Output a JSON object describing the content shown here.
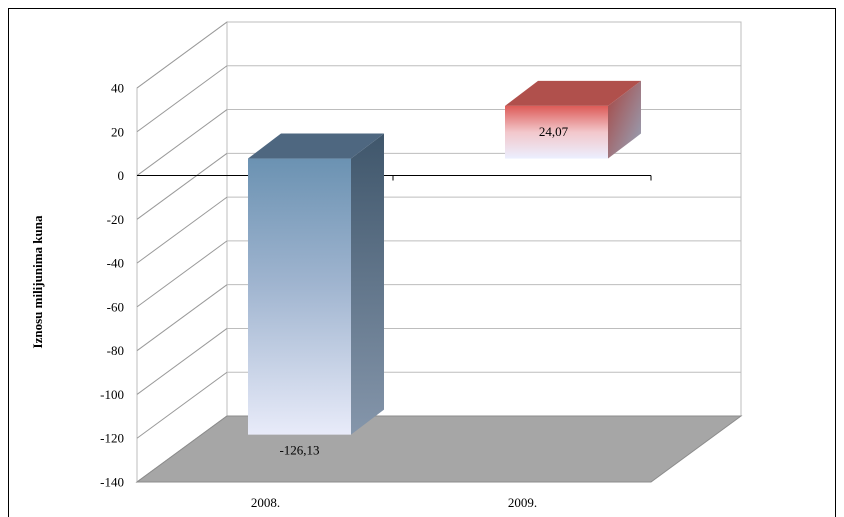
{
  "chart_data": {
    "type": "bar",
    "style": "3d-column",
    "categories": [
      "2008.",
      "2009."
    ],
    "values": [
      -126.13,
      24.07
    ],
    "data_labels": [
      "-126,13",
      "24,07"
    ],
    "ylabel": "Iznosu milijunima kuna",
    "ylim": [
      -140,
      40
    ],
    "yticks": [
      40,
      20,
      0,
      -20,
      -40,
      -60,
      -80,
      -100,
      -120,
      -140
    ],
    "grid": true,
    "legend": "none",
    "colors": {
      "series_top": [
        "#6f95b4",
        "#d9534f"
      ],
      "series_bottom": [
        "#e7eaf8",
        "#edf0fb"
      ],
      "floor": "#a6a6a6",
      "frame": "#000000",
      "gridline": "#bdbdbd"
    }
  }
}
